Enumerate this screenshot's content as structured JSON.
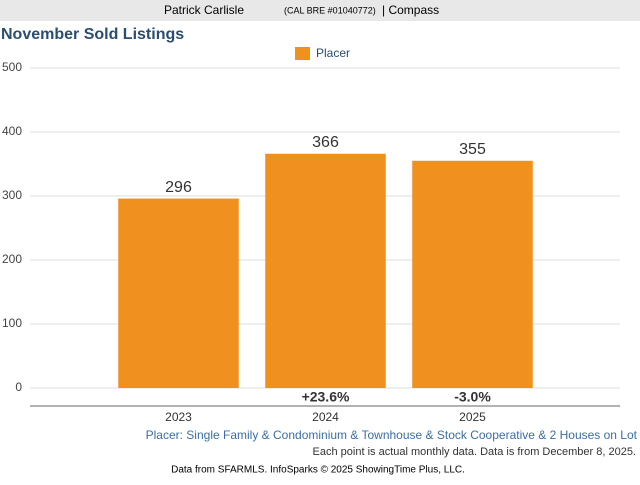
{
  "header": {
    "agent": "Patrick Carlisle",
    "license": "(CAL BRE #01040772)",
    "company": "| Compass"
  },
  "chart_data": {
    "type": "bar",
    "title": "November Sold Listings",
    "categories": [
      "2023",
      "2024",
      "2025"
    ],
    "series": [
      {
        "name": "Placer",
        "color": "#f0901e",
        "values": [
          296,
          366,
          355
        ]
      }
    ],
    "change_labels": [
      null,
      "+23.6%",
      "-3.0%"
    ],
    "ylim": [
      0,
      500
    ],
    "yticks": [
      0,
      100,
      200,
      300,
      400,
      500
    ],
    "grid": true,
    "subtitle": "Placer: Single Family & Condominium & Townhouse & Stock Cooperative & 2 Houses on Lot",
    "note": "Each point is actual monthly data. Data is from December 8, 2025.",
    "source": "Data from SFARMLS. InfoSparks © 2025 ShowingTime Plus, LLC."
  }
}
